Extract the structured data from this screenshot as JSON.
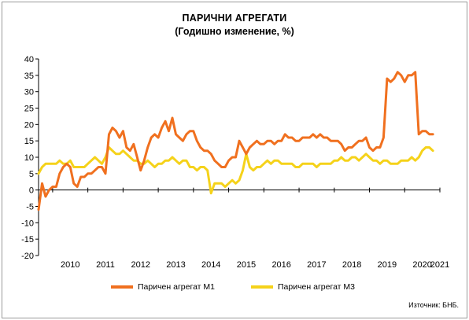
{
  "chart_data": {
    "type": "line",
    "title": "ПАРИЧНИ АГРЕГАТИ",
    "subtitle": "(Годишно изменение, %)",
    "xlabel": "",
    "ylabel": "",
    "ylim": [
      -20,
      40
    ],
    "yticks": [
      40,
      35,
      30,
      25,
      20,
      15,
      10,
      5,
      0,
      -5,
      -10,
      -15,
      -20
    ],
    "xlim": [
      2009.6,
      2021.0
    ],
    "xticks": [
      "2010",
      "2011",
      "2012",
      "2013",
      "2014",
      "2015",
      "2016",
      "2017",
      "2018",
      "2019",
      "2020",
      "2021"
    ],
    "grid": false,
    "legend_position": "bottom",
    "series": [
      {
        "name": "Паричен агрегат М1",
        "color": "#F0701F",
        "x": [
          2009.6,
          2009.7,
          2009.8,
          2009.9,
          2010.0,
          2010.1,
          2010.2,
          2010.3,
          2010.4,
          2010.5,
          2010.6,
          2010.7,
          2010.8,
          2010.9,
          2011.0,
          2011.1,
          2011.2,
          2011.3,
          2011.4,
          2011.5,
          2011.6,
          2011.7,
          2011.8,
          2011.9,
          2012.0,
          2012.1,
          2012.2,
          2012.3,
          2012.4,
          2012.5,
          2012.6,
          2012.7,
          2012.8,
          2012.9,
          2013.0,
          2013.1,
          2013.2,
          2013.3,
          2013.4,
          2013.5,
          2013.6,
          2013.7,
          2013.8,
          2013.9,
          2014.0,
          2014.1,
          2014.2,
          2014.3,
          2014.4,
          2014.5,
          2014.6,
          2014.7,
          2014.8,
          2014.9,
          2015.0,
          2015.1,
          2015.2,
          2015.3,
          2015.4,
          2015.5,
          2015.6,
          2015.7,
          2015.8,
          2015.9,
          2016.0,
          2016.1,
          2016.2,
          2016.3,
          2016.4,
          2016.5,
          2016.6,
          2016.7,
          2016.8,
          2016.9,
          2017.0,
          2017.1,
          2017.2,
          2017.3,
          2017.4,
          2017.5,
          2017.6,
          2017.7,
          2017.8,
          2017.9,
          2018.0,
          2018.1,
          2018.2,
          2018.3,
          2018.4,
          2018.5,
          2018.6,
          2018.7,
          2018.8,
          2018.9,
          2019.0,
          2019.1,
          2019.2,
          2019.3,
          2019.4,
          2019.5,
          2019.6,
          2019.7,
          2019.8,
          2019.9,
          2020.0,
          2020.1,
          2020.2,
          2020.3,
          2020.4,
          2020.5,
          2020.6,
          2020.7,
          2020.8
        ],
        "values": [
          -6,
          2,
          -2,
          0,
          1,
          1,
          5,
          7,
          8,
          7,
          2,
          1,
          4,
          4,
          5,
          5,
          6,
          7,
          7,
          5,
          17,
          19,
          18,
          16,
          18,
          13,
          12,
          14,
          10,
          6,
          9,
          13,
          16,
          17,
          16,
          19,
          21,
          18,
          22,
          17,
          16,
          15,
          17,
          18,
          18,
          15,
          13,
          12,
          12,
          11,
          9,
          8,
          7,
          7,
          9,
          10,
          10,
          15,
          13,
          11,
          13,
          14,
          15,
          14,
          14,
          15,
          15,
          14,
          15,
          15,
          17,
          16,
          16,
          15,
          15,
          16,
          16,
          16,
          17,
          16,
          17,
          16,
          16,
          15,
          15,
          15,
          14,
          12,
          13,
          13,
          14,
          15,
          15,
          16,
          13,
          12,
          13,
          13,
          16,
          34,
          33,
          34,
          36,
          35,
          33,
          35,
          35,
          36,
          17,
          18,
          18,
          17,
          17
        ]
      },
      {
        "name": "Паричен агрегат М3",
        "color": "#F5D21A",
        "x": [
          2009.6,
          2009.7,
          2009.8,
          2009.9,
          2010.0,
          2010.1,
          2010.2,
          2010.3,
          2010.4,
          2010.5,
          2010.6,
          2010.7,
          2010.8,
          2010.9,
          2011.0,
          2011.1,
          2011.2,
          2011.3,
          2011.4,
          2011.5,
          2011.6,
          2011.7,
          2011.8,
          2011.9,
          2012.0,
          2012.1,
          2012.2,
          2012.3,
          2012.4,
          2012.5,
          2012.6,
          2012.7,
          2012.8,
          2012.9,
          2013.0,
          2013.1,
          2013.2,
          2013.3,
          2013.4,
          2013.5,
          2013.6,
          2013.7,
          2013.8,
          2013.9,
          2014.0,
          2014.1,
          2014.2,
          2014.3,
          2014.4,
          2014.5,
          2014.6,
          2014.7,
          2014.8,
          2014.9,
          2015.0,
          2015.1,
          2015.2,
          2015.3,
          2015.4,
          2015.5,
          2015.6,
          2015.7,
          2015.8,
          2015.9,
          2016.0,
          2016.1,
          2016.2,
          2016.3,
          2016.4,
          2016.5,
          2016.6,
          2016.7,
          2016.8,
          2016.9,
          2017.0,
          2017.1,
          2017.2,
          2017.3,
          2017.4,
          2017.5,
          2017.6,
          2017.7,
          2017.8,
          2017.9,
          2018.0,
          2018.1,
          2018.2,
          2018.3,
          2018.4,
          2018.5,
          2018.6,
          2018.7,
          2018.8,
          2018.9,
          2019.0,
          2019.1,
          2019.2,
          2019.3,
          2019.4,
          2019.5,
          2019.6,
          2019.7,
          2019.8,
          2019.9,
          2020.0,
          2020.1,
          2020.2,
          2020.3,
          2020.4,
          2020.5,
          2020.6,
          2020.7,
          2020.8
        ],
        "values": [
          5,
          7,
          8,
          8,
          8,
          8,
          9,
          8,
          8,
          9,
          7,
          7,
          7,
          7,
          8,
          9,
          10,
          9,
          8,
          10,
          13,
          12,
          11,
          11,
          12,
          11,
          10,
          9,
          9,
          8,
          8,
          9,
          8,
          7,
          8,
          8,
          9,
          9,
          10,
          9,
          8,
          9,
          9,
          7,
          7,
          6,
          7,
          7,
          6,
          -1,
          2,
          2,
          2,
          1,
          2,
          3,
          2,
          3,
          6,
          11,
          7,
          6,
          7,
          7,
          8,
          9,
          8,
          9,
          9,
          8,
          8,
          8,
          8,
          7,
          7,
          8,
          8,
          8,
          8,
          7,
          8,
          8,
          8,
          8,
          9,
          9,
          10,
          9,
          9,
          10,
          10,
          9,
          10,
          11,
          10,
          9,
          9,
          8,
          9,
          9,
          8,
          8,
          8,
          9,
          9,
          9,
          10,
          9,
          10,
          12,
          13,
          13,
          12
        ]
      }
    ]
  },
  "source": "Източник: БНБ."
}
